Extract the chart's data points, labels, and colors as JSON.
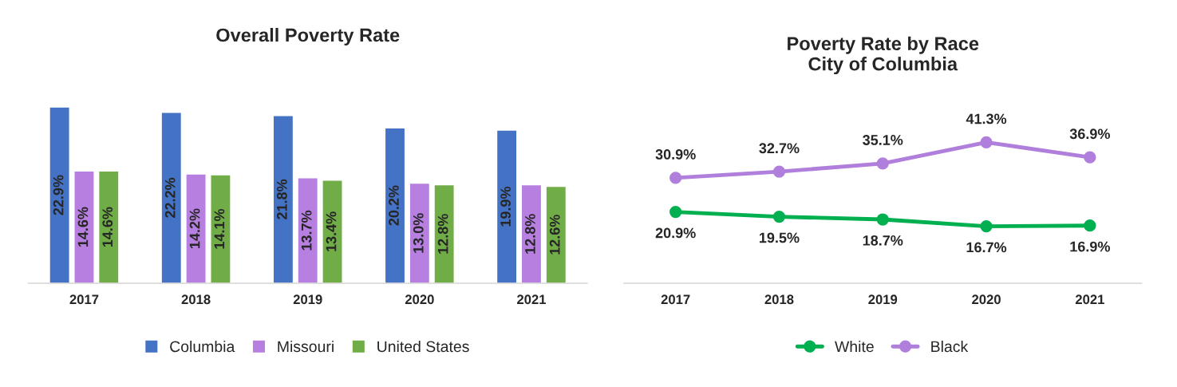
{
  "chart_data": [
    {
      "type": "bar",
      "title": "Overall Poverty Rate",
      "categories": [
        "2017",
        "2018",
        "2019",
        "2020",
        "2021"
      ],
      "legend": "bottom",
      "grid": false,
      "series": [
        {
          "name": "Columbia",
          "color": "#4472c4",
          "values": [
            22.9,
            22.2,
            21.8,
            20.2,
            19.9
          ],
          "value_labels": [
            "22.9%",
            "22.2%",
            "21.8%",
            "20.2%",
            "19.9%"
          ]
        },
        {
          "name": "Missouri",
          "color": "#b77fe0",
          "values": [
            14.6,
            14.2,
            13.7,
            13.0,
            12.8
          ],
          "value_labels": [
            "14.6%",
            "14.2%",
            "13.7%",
            "13.0%",
            "12.8%"
          ]
        },
        {
          "name": "United States",
          "color": "#70ad47",
          "values": [
            14.6,
            14.1,
            13.4,
            12.8,
            12.6
          ],
          "value_labels": [
            "14.6%",
            "14.1%",
            "13.4%",
            "12.8%",
            "12.6%"
          ]
        }
      ]
    },
    {
      "type": "line",
      "title": "Poverty Rate by Race\nCity of Columbia",
      "categories": [
        "2017",
        "2018",
        "2019",
        "2020",
        "2021"
      ],
      "legend": "bottom",
      "grid": false,
      "marker": "circle",
      "line_style": "solid",
      "series": [
        {
          "name": "White",
          "color": "#00b050",
          "values": [
            20.9,
            19.5,
            18.7,
            16.7,
            16.9
          ],
          "value_labels": [
            "20.9%",
            "19.5%",
            "18.7%",
            "16.7%",
            "16.9%"
          ]
        },
        {
          "name": "Black",
          "color": "#b07fdc",
          "values": [
            30.9,
            32.7,
            35.1,
            41.3,
            36.9
          ],
          "value_labels": [
            "30.9%",
            "32.7%",
            "35.1%",
            "41.3%",
            "36.9%"
          ]
        }
      ]
    }
  ]
}
